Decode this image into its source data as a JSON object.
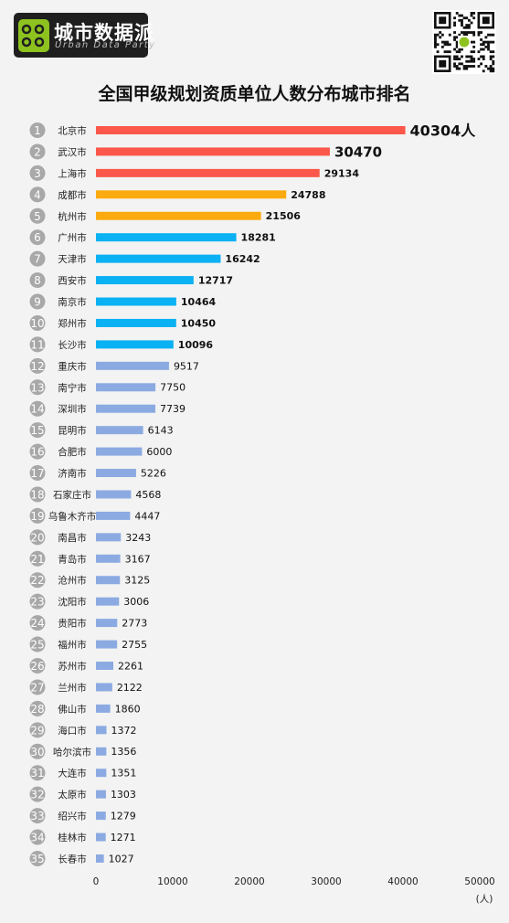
{
  "brand": {
    "name": "城市数据派",
    "subtitle": "Urban Data Party",
    "qr_icon": "qr-code-icon"
  },
  "colors": {
    "top3": "#fb574a",
    "top5": "#fbab0f",
    "top11": "#0ab1f3",
    "rest": "#8caae2",
    "rank_badge": "#a8a8a8"
  },
  "chart_data": {
    "type": "bar",
    "orientation": "horizontal",
    "title": "全国甲级规划资质单位人数分布城市排名",
    "ranks": [
      "1",
      "2",
      "3",
      "4",
      "5",
      "6",
      "7",
      "8",
      "9",
      "10",
      "11",
      "12",
      "13",
      "14",
      "15",
      "16",
      "17",
      "18",
      "19",
      "20",
      "21",
      "22",
      "23",
      "24",
      "25",
      "26",
      "27",
      "28",
      "29",
      "30",
      "31",
      "32",
      "33",
      "34",
      "35"
    ],
    "categories": [
      "北京市",
      "武汉市",
      "上海市",
      "成都市",
      "杭州市",
      "广州市",
      "天津市",
      "西安市",
      "南京市",
      "郑州市",
      "长沙市",
      "重庆市",
      "南宁市",
      "深圳市",
      "昆明市",
      "合肥市",
      "济南市",
      "石家庄市",
      "乌鲁木齐市",
      "南昌市",
      "青岛市",
      "沧州市",
      "沈阳市",
      "贵阳市",
      "福州市",
      "苏州市",
      "兰州市",
      "佛山市",
      "海口市",
      "哈尔滨市",
      "大连市",
      "太原市",
      "绍兴市",
      "桂林市",
      "长春市"
    ],
    "values": [
      40304,
      30470,
      29134,
      24788,
      21506,
      18281,
      16242,
      12717,
      10464,
      10450,
      10096,
      9517,
      7750,
      7739,
      6143,
      6000,
      5226,
      4568,
      4447,
      3243,
      3167,
      3125,
      3006,
      2773,
      2755,
      2261,
      2122,
      1860,
      1372,
      1356,
      1351,
      1303,
      1279,
      1271,
      1027
    ],
    "value_labels": [
      "40304人",
      "30470",
      "29134",
      "24788",
      "21506",
      "18281",
      "16242",
      "12717",
      "10464",
      "10450",
      "10096",
      "9517",
      "7750",
      "7739",
      "6143",
      "6000",
      "5226",
      "4568",
      "4447",
      "3243",
      "3167",
      "3125",
      "3006",
      "2773",
      "2755",
      "2261",
      "2122",
      "1860",
      "1372",
      "1356",
      "1351",
      "1303",
      "1279",
      "1271",
      "1027"
    ],
    "color_groups": [
      3,
      5,
      11
    ],
    "xlim": [
      0,
      50000
    ],
    "xticks": [
      "0",
      "10000",
      "20000",
      "30000",
      "40000",
      "50000"
    ],
    "xlabel": "(人)",
    "grid": false,
    "legend": "none"
  }
}
